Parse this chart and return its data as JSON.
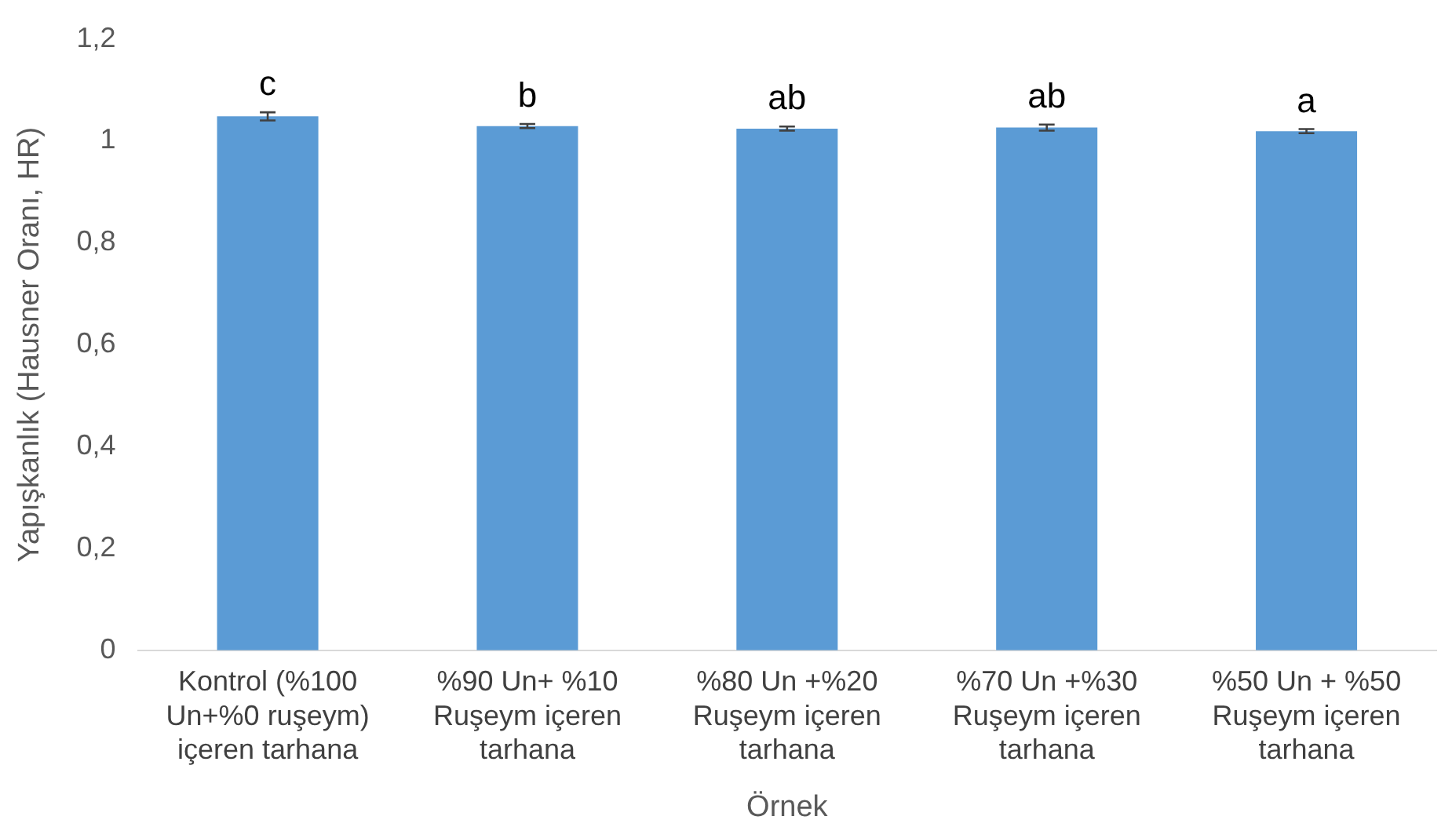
{
  "chart_data": {
    "type": "bar",
    "xlabel": "Örnek",
    "ylabel": "Yapışkanlık (Hausner Oranı, HR)",
    "categories": [
      "Kontrol (%100 Un+%0 ruşeym) içeren tarhana",
      "%90 Un+ %10 Ruşeym içeren tarhana",
      "%80 Un +%20 Ruşeym içeren tarhana",
      "%70 Un +%30 Ruşeym içeren tarhana",
      "%50 Un + %50 Ruşeym içeren tarhana"
    ],
    "values": [
      1.048,
      1.029,
      1.024,
      1.026,
      1.019
    ],
    "errors": [
      0.008,
      0.004,
      0.004,
      0.006,
      0.004
    ],
    "color": "#5b9bd5",
    "ylim": [
      0,
      1.2
    ],
    "yticks": [
      0,
      {
        "value": 0.2,
        "label": "0,2"
      },
      {
        "value": 0.4,
        "label": "0,4"
      },
      {
        "value": 0.6,
        "label": "0,6"
      },
      {
        "value": 0.8,
        "label": "0,8"
      },
      1,
      {
        "value": 1.2,
        "label": "1,2"
      }
    ],
    "grid": false,
    "legend": false,
    "annotations": [
      {
        "text": "c",
        "x": "Kontrol (%100 Un+%0 ruşeym) içeren tarhana",
        "y": 1.056
      },
      {
        "text": "b",
        "x": "%90 Un+ %10 Ruşeym içeren tarhana",
        "y": 1.033
      },
      {
        "text": "ab",
        "x": "%80 Un +%20 Ruşeym içeren tarhana",
        "y": 1.028
      },
      {
        "text": "ab",
        "x": "%70 Un +%30 Ruşeym içeren tarhana",
        "y": 1.032
      },
      {
        "text": "a",
        "x": "%50 Un + %50 Ruşeym içeren tarhana",
        "y": 1.023
      }
    ]
  }
}
